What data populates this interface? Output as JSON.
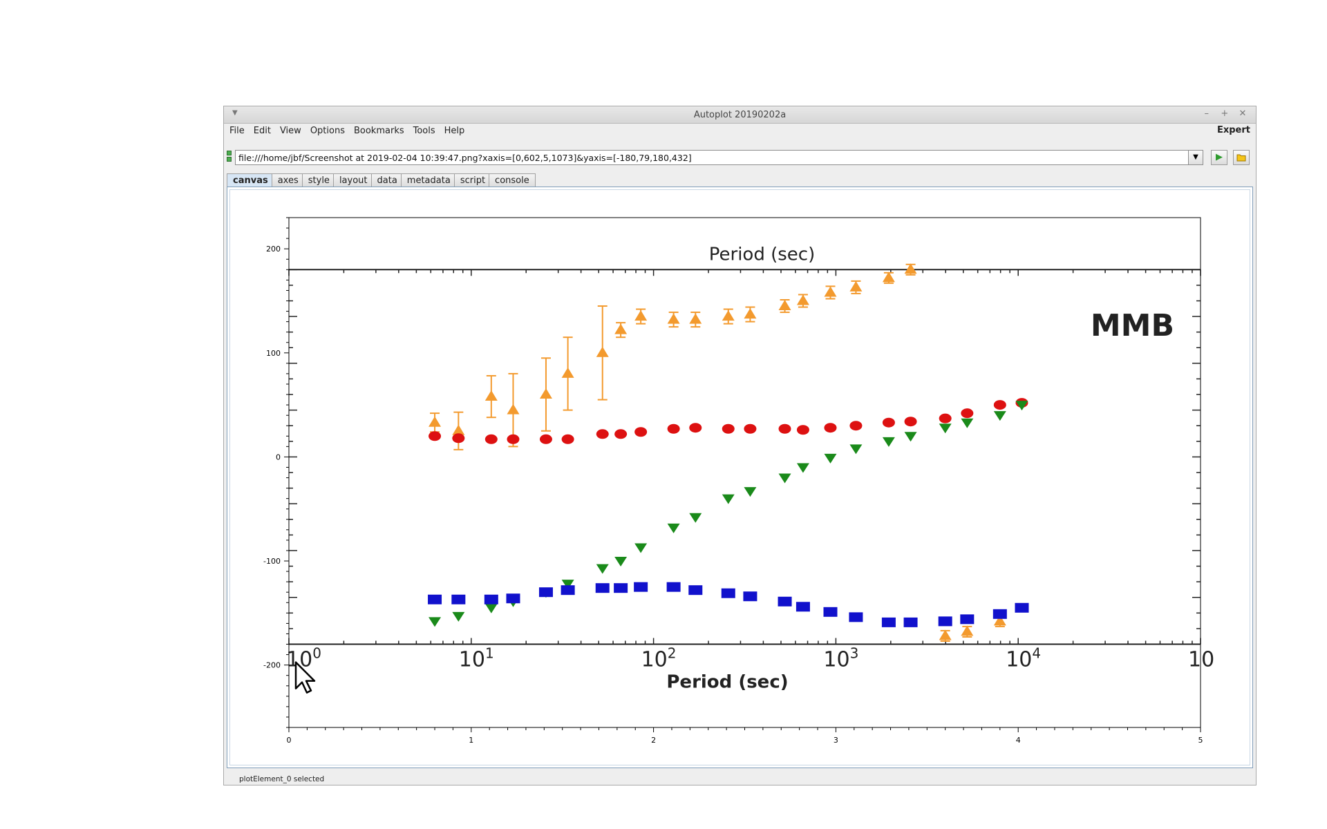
{
  "window": {
    "title": "Autoplot 20190202a",
    "controls": [
      "–",
      "+",
      "✕"
    ]
  },
  "menubar": {
    "items": [
      "File",
      "Edit",
      "View",
      "Options",
      "Bookmarks",
      "Tools",
      "Help"
    ],
    "expert_label": "Expert"
  },
  "url": {
    "value": "file:///home/jbf/Screenshot at 2019-02-04 10:39:47.png?xaxis=[0,602,5,1073]&yaxis=[-180,79,180,432]"
  },
  "tabs": [
    "canvas",
    "axes",
    "style",
    "layout",
    "data",
    "metadata",
    "script",
    "console"
  ],
  "active_tab": "canvas",
  "status": {
    "text": "plotElement_0 selected"
  },
  "icons": {
    "status_indicator": "status-indicator-icon",
    "dropdown": "chevron-down-icon",
    "go": "play-icon",
    "browse": "folder-icon",
    "cursor": "mouse-pointer-icon"
  },
  "chart_data": {
    "type": "scatter",
    "title": "",
    "xlabel": "",
    "ylabel": "",
    "xlim": [
      0,
      5
    ],
    "ylim": [
      -260,
      230
    ],
    "xticks": [
      "0",
      "1",
      "2",
      "3",
      "4",
      "5"
    ],
    "yticks": [
      "-200",
      "-100",
      "0",
      "100",
      "200"
    ],
    "background_image": {
      "label_top": "Period (sec)",
      "label_bottom": "Period (sec)",
      "annotation": "MMB",
      "decade_bases": [
        "10",
        "10",
        "10",
        "10",
        "10",
        "10"
      ],
      "decade_exponents": [
        "0",
        "1",
        "2",
        "3",
        "4",
        ""
      ],
      "series": [
        {
          "marker": "triangle-up",
          "color": "#f39a2e",
          "x": [
            0.8,
            0.93,
            1.11,
            1.23,
            1.41,
            1.53,
            1.72,
            1.82,
            1.93,
            2.11,
            2.23,
            2.41,
            2.53,
            2.72,
            2.82,
            2.97,
            3.11,
            3.29,
            3.41,
            3.6,
            3.72,
            3.9
          ],
          "y": [
            33,
            25,
            58,
            45,
            60,
            80,
            100,
            122,
            135,
            132,
            132,
            135,
            137,
            145,
            150,
            158,
            163,
            172,
            180,
            -172,
            -168,
            -158
          ],
          "err": [
            9,
            18,
            20,
            35,
            35,
            35,
            45,
            7,
            7,
            7,
            7,
            7,
            7,
            6,
            6,
            6,
            6,
            5,
            5,
            5,
            5,
            5
          ]
        },
        {
          "marker": "circle",
          "color": "#dd1111",
          "x": [
            0.8,
            0.93,
            1.11,
            1.23,
            1.41,
            1.53,
            1.72,
            1.82,
            1.93,
            2.11,
            2.23,
            2.41,
            2.53,
            2.72,
            2.82,
            2.97,
            3.11,
            3.29,
            3.41,
            3.6,
            3.72,
            3.9,
            4.02
          ],
          "y": [
            20,
            18,
            17,
            17,
            17,
            17,
            22,
            22,
            24,
            27,
            28,
            27,
            27,
            27,
            26,
            28,
            30,
            33,
            34,
            37,
            42,
            50,
            52
          ]
        },
        {
          "marker": "triangle-down",
          "color": "#1a8a1a",
          "x": [
            0.8,
            0.93,
            1.11,
            1.23,
            1.41,
            1.53,
            1.72,
            1.82,
            1.93,
            2.11,
            2.23,
            2.41,
            2.53,
            2.72,
            2.82,
            2.97,
            3.11,
            3.29,
            3.41,
            3.6,
            3.72,
            3.9,
            4.02
          ],
          "y": [
            -158,
            -153,
            -145,
            -139,
            -130,
            -122,
            -107,
            -100,
            -87,
            -68,
            -58,
            -40,
            -33,
            -20,
            -10,
            -1,
            8,
            15,
            20,
            28,
            33,
            40,
            50
          ]
        },
        {
          "marker": "square",
          "color": "#1111cc",
          "x": [
            0.8,
            0.93,
            1.11,
            1.23,
            1.41,
            1.53,
            1.72,
            1.82,
            1.93,
            2.11,
            2.23,
            2.41,
            2.53,
            2.72,
            2.82,
            2.97,
            3.11,
            3.29,
            3.41,
            3.6,
            3.72,
            3.9,
            4.02
          ],
          "y": [
            -137,
            -137,
            -137,
            -136,
            -130,
            -128,
            -126,
            -126,
            -125,
            -125,
            -128,
            -131,
            -134,
            -139,
            -144,
            -149,
            -154,
            -159,
            -159,
            -158,
            -156,
            -151,
            -145
          ]
        }
      ]
    }
  }
}
